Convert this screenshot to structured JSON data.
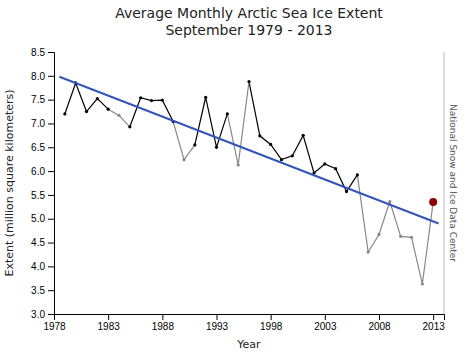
{
  "chart_data": {
    "type": "line",
    "title": "Average Monthly Arctic Sea Ice Extent\nSeptember 1979 - 2013",
    "x_label": "Year",
    "y_label": "Extent (million square kilometers)",
    "annotations": [
      "National Snow and Ice Data Center"
    ],
    "x": [
      1979,
      1980,
      1981,
      1982,
      1983,
      1984,
      1985,
      1986,
      1987,
      1988,
      1989,
      1990,
      1991,
      1992,
      1993,
      1994,
      1995,
      1996,
      1997,
      1998,
      1999,
      2000,
      2001,
      2002,
      2003,
      2004,
      2005,
      2006,
      2007,
      2008,
      2009,
      2010,
      2011,
      2012,
      2013
    ],
    "series": [
      {
        "type": "line",
        "color": "#000000",
        "marker": "circle",
        "values": [
          7.2,
          7.85,
          7.25,
          7.52,
          7.3,
          null,
          6.93,
          7.54,
          7.48,
          7.49,
          7.04,
          null,
          6.55,
          7.55,
          6.5,
          7.2,
          null,
          7.88,
          6.74,
          6.56,
          6.24,
          6.32,
          6.75,
          5.96,
          6.15,
          6.05,
          5.57,
          5.92,
          null,
          null,
          null,
          null,
          null,
          null,
          null
        ]
      },
      {
        "type": "line",
        "color": "#888888",
        "marker": "circle",
        "values": [
          null,
          null,
          null,
          null,
          7.3,
          7.17,
          6.93,
          null,
          null,
          null,
          7.04,
          6.24,
          6.55,
          null,
          null,
          7.2,
          6.13,
          7.88,
          null,
          null,
          null,
          null,
          null,
          null,
          null,
          null,
          null,
          5.92,
          4.3,
          4.67,
          5.36,
          4.63,
          4.61,
          3.63,
          5.35
        ]
      },
      {
        "type": "scatter",
        "color": "#8B0000",
        "marker": "circle",
        "values": [
          null,
          null,
          null,
          null,
          null,
          null,
          null,
          null,
          null,
          null,
          null,
          null,
          null,
          null,
          null,
          null,
          null,
          null,
          null,
          null,
          null,
          null,
          null,
          null,
          null,
          null,
          null,
          null,
          null,
          null,
          null,
          null,
          null,
          null,
          5.35
        ]
      },
      {
        "type": "line",
        "color": "#3355bb",
        "x": [
          1978.5,
          2013.5
        ],
        "values": [
          7.98,
          4.9
        ]
      }
    ],
    "xlim": [
      1978,
      2014
    ],
    "ylim": [
      3.0,
      8.5
    ],
    "xticks": [
      1978,
      1983,
      1988,
      1993,
      1998,
      2003,
      2008,
      2013
    ],
    "yticks": [
      {
        "value": 3.0,
        "label": "3.0"
      },
      {
        "value": 3.5,
        "label": "3.5"
      },
      {
        "value": 4.0,
        "label": "4.0"
      },
      {
        "value": 4.5,
        "label": "4.5"
      },
      {
        "value": 5.0,
        "label": "5.0"
      },
      {
        "value": 5.5,
        "label": "5.5"
      },
      {
        "value": 6.0,
        "label": "6.0"
      },
      {
        "value": 6.5,
        "label": "6.5"
      },
      {
        "value": 7.0,
        "label": "7.0"
      },
      {
        "value": 7.5,
        "label": "7.5"
      },
      {
        "value": 8.0,
        "label": "8.0"
      },
      {
        "value": 8.5,
        "label": "8.5"
      }
    ],
    "grid": false
  }
}
